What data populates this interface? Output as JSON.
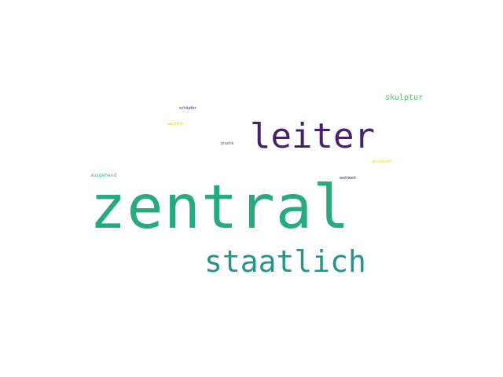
{
  "words": [
    {
      "key": "zentral",
      "text": "zentral",
      "color": "#27a982"
    },
    {
      "key": "leiter",
      "text": "leiter",
      "color": "#46226c"
    },
    {
      "key": "staatlich",
      "text": "staatlich",
      "color": "#23948e"
    },
    {
      "key": "skulptur",
      "text": "skulptur",
      "color": "#4fc26a"
    },
    {
      "key": "schopfer",
      "text": "schöpfer",
      "color": "#3b1c6e"
    },
    {
      "key": "sachlich",
      "text": "sachlich",
      "color": "#d8d51f"
    },
    {
      "key": "plastik",
      "text": "plastik",
      "color": "#2c6e8e"
    },
    {
      "key": "prunkvoll",
      "text": "prunkvoll",
      "color": "#dce21d"
    },
    {
      "key": "ausgehend",
      "text": "ausgehend",
      "color": "#3bbb79"
    },
    {
      "key": "weltweit",
      "text": "weltweit",
      "color": "#3a2a7c"
    }
  ]
}
